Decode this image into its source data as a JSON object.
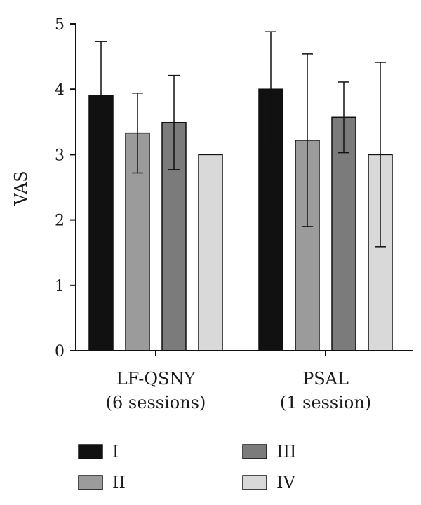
{
  "chart_data": {
    "type": "bar",
    "ylabel": "VAS",
    "ylim": [
      0,
      5
    ],
    "yticks": [
      "0",
      "1",
      "2",
      "3",
      "4",
      "5"
    ],
    "categories": [
      [
        "LF-QSNY",
        "(6 sessions)"
      ],
      [
        "PSAL",
        "(1 session)"
      ]
    ],
    "series": [
      {
        "name": "I",
        "color": "#111111",
        "values": [
          3.9,
          4.0
        ],
        "errors": [
          0.83,
          0.88
        ]
      },
      {
        "name": "II",
        "color": "#9b9b9b",
        "values": [
          3.33,
          3.22
        ],
        "errors": [
          0.61,
          1.32
        ]
      },
      {
        "name": "III",
        "color": "#7b7b7b",
        "values": [
          3.49,
          3.57
        ],
        "errors": [
          0.72,
          0.54
        ]
      },
      {
        "name": "IV",
        "color": "#d9d9d9",
        "values": [
          3.0,
          3.0
        ],
        "errors": [
          0,
          1.41
        ]
      }
    ],
    "legend_placement": "bottom"
  }
}
